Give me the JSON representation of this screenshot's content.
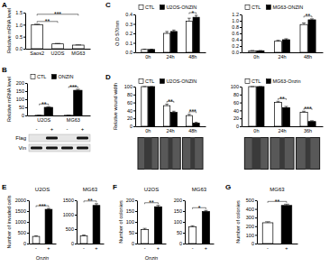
{
  "chart_data": [
    {
      "panel": "A",
      "type": "bar",
      "ylabel": "Relative mRNA level",
      "categories": [
        "Saos2",
        "U2OS",
        "MG63"
      ],
      "values": [
        1.0,
        0.2,
        0.15
      ],
      "errors": [
        0.02,
        0.02,
        0.01
      ],
      "color": "#ffffff",
      "ylim": [
        0,
        1.5
      ],
      "yticks": [
        {
          "value": 0,
          "label": "0.0"
        },
        {
          "value": 0.5,
          "label": "0.5"
        },
        {
          "value": 1,
          "label": "1.0"
        },
        {
          "value": 1.5,
          "label": "1.5"
        }
      ],
      "significance": [
        null,
        "**",
        "***"
      ]
    },
    {
      "panel": "B",
      "type": "bar",
      "ylabel": "Relative mRNA level",
      "categories": [
        "U2OS",
        "MG63"
      ],
      "series": [
        {
          "name": "CTL",
          "color": "#ffffff",
          "values": [
            1,
            1
          ],
          "errors": [
            0.1,
            0.1
          ]
        },
        {
          "name": "ONZIN",
          "color": "#000000",
          "values": [
            50,
            155
          ],
          "errors": [
            4,
            6
          ]
        }
      ],
      "ylim": [
        0,
        200
      ],
      "yticks": [
        0,
        50,
        100,
        150,
        200
      ],
      "legend": "upper left",
      "significance": [
        "**",
        "***"
      ],
      "blot": {
        "rows": [
          "Flag",
          "Vin"
        ],
        "lanes": [
          "-",
          "+",
          "-",
          "+"
        ]
      }
    },
    {
      "panel": "C",
      "type": "bar",
      "ylabel": "O.D 570nm",
      "categories": [
        "0h",
        "24h",
        "48h"
      ],
      "series": [
        {
          "name": "CTL",
          "color": "#ffffff",
          "values": [
            0.03,
            0.2,
            0.33
          ],
          "errors": [
            0.003,
            0.02,
            0.03
          ]
        },
        {
          "name": "U2OS-ONZIN",
          "color": "#000000",
          "values": [
            0.03,
            0.22,
            0.37
          ],
          "errors": [
            0.003,
            0.015,
            0.02
          ]
        }
      ],
      "ylim": [
        0,
        0.4
      ],
      "yticks": [
        {
          "value": 0,
          "label": "0.0"
        },
        0.1,
        0.2,
        0.3,
        0.4
      ],
      "legend": "upper left",
      "significance": [
        null,
        null,
        "*"
      ]
    },
    {
      "type": "bar",
      "categories": [
        "0h",
        "24h",
        "48h"
      ],
      "series": [
        {
          "name": "CTL",
          "color": "#ffffff",
          "values": [
            0.05,
            0.35,
            0.88
          ],
          "errors": [
            0.005,
            0.03,
            0.05
          ]
        },
        {
          "name": "MG63-ONZIN",
          "color": "#000000",
          "values": [
            0.05,
            0.4,
            1.03
          ],
          "errors": [
            0.005,
            0.03,
            0.03
          ]
        }
      ],
      "ylim": [
        0,
        1.2
      ],
      "yticks": [
        {
          "value": 0,
          "label": "0.0"
        },
        0.2,
        0.4,
        0.6,
        0.8,
        {
          "value": 1,
          "label": "1.0"
        },
        1.2
      ],
      "legend": "upper left",
      "significance": [
        null,
        null,
        "**"
      ]
    },
    {
      "panel": "D",
      "type": "bar",
      "ylabel": "Relative wound width",
      "categories": [
        "0h",
        "24h",
        "48h"
      ],
      "series": [
        {
          "name": "CTL",
          "color": "#ffffff",
          "values": [
            100,
            52,
            27
          ],
          "errors": [
            0,
            4,
            3
          ]
        },
        {
          "name": "U2OS-ONZIN",
          "color": "#000000",
          "values": [
            100,
            35,
            8
          ],
          "errors": [
            0,
            3,
            2
          ]
        }
      ],
      "ylim": [
        0,
        100
      ],
      "yticks": [
        0,
        20,
        40,
        60,
        80,
        100
      ],
      "legend": "upper left",
      "significance": [
        null,
        "**",
        "***"
      ]
    },
    {
      "type": "bar",
      "categories": [
        "0h",
        "24h",
        "36h"
      ],
      "series": [
        {
          "name": "CTL",
          "color": "#ffffff",
          "values": [
            100,
            60,
            35
          ],
          "errors": [
            0,
            3,
            3
          ]
        },
        {
          "name": "MG63-Onzin",
          "color": "#000000",
          "values": [
            100,
            47,
            12
          ],
          "errors": [
            0,
            3,
            2
          ]
        }
      ],
      "ylim": [
        0,
        100
      ],
      "yticks": [
        0,
        20,
        40,
        60,
        80,
        100
      ],
      "legend": "upper left",
      "significance": [
        null,
        "**",
        "***"
      ]
    },
    {
      "panel": "E",
      "type": "bar",
      "title": "U2OS",
      "ylabel": "Number of invaded cells",
      "xlabel": "Onzin",
      "categories": [
        "-",
        "+"
      ],
      "values": [
        330,
        1580
      ],
      "errors": [
        30,
        40
      ],
      "colors": [
        "#ffffff",
        "#000000"
      ],
      "ylim": [
        0,
        2000
      ],
      "yticks": [
        0,
        500,
        1000,
        1500,
        2000
      ],
      "significance": [
        null,
        "***"
      ]
    },
    {
      "type": "bar",
      "title": "MG63",
      "categories": [
        "-",
        "+"
      ],
      "values": [
        270,
        1320
      ],
      "errors": [
        25,
        60
      ],
      "colors": [
        "#ffffff",
        "#000000"
      ],
      "ylim": [
        0,
        1500
      ],
      "yticks": [
        0,
        500,
        1000,
        1500
      ],
      "significance": [
        null,
        "**"
      ]
    },
    {
      "panel": "F",
      "type": "bar",
      "title": "U2OS",
      "ylabel": "Number of colonies",
      "xlabel": "Onzin",
      "categories": [
        "-",
        "+"
      ],
      "values": [
        65,
        170
      ],
      "errors": [
        5,
        6
      ],
      "colors": [
        "#ffffff",
        "#000000"
      ],
      "ylim": [
        0,
        200
      ],
      "yticks": [
        0,
        50,
        100,
        150,
        200
      ],
      "significance": [
        null,
        "**"
      ]
    },
    {
      "type": "bar",
      "title": "MG63",
      "categories": [
        "-",
        "+"
      ],
      "values": [
        78,
        148
      ],
      "errors": [
        4,
        5
      ],
      "colors": [
        "#ffffff",
        "#000000"
      ],
      "ylim": [
        0,
        200
      ],
      "yticks": [
        0,
        50,
        100,
        150,
        200
      ],
      "significance": [
        null,
        "*"
      ]
    },
    {
      "panel": "G",
      "type": "bar",
      "title": "MG63",
      "ylabel": "Number of colonies",
      "categories": [
        "-",
        "+"
      ],
      "values": [
        240,
        440
      ],
      "errors": [
        12,
        15
      ],
      "colors": [
        "#ffffff",
        "#000000"
      ],
      "ylim": [
        0,
        500
      ],
      "yticks": [
        0,
        100,
        200,
        300,
        400,
        500
      ],
      "significance": [
        null,
        "**"
      ]
    }
  ]
}
